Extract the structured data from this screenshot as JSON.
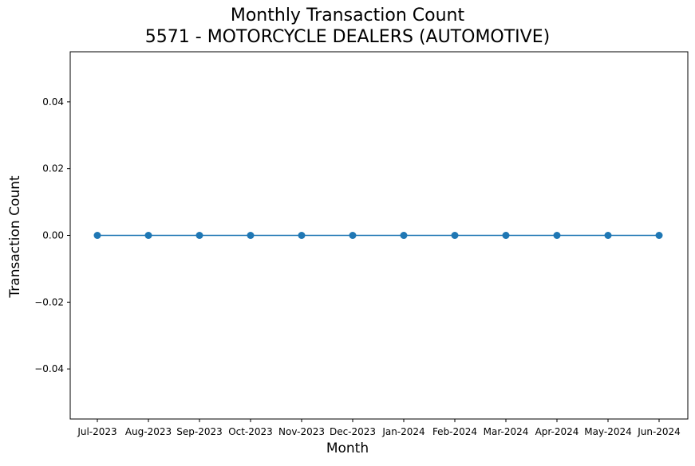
{
  "chart_data": {
    "type": "line",
    "title": "Monthly Transaction Count",
    "subtitle": "5571 - MOTORCYCLE DEALERS (AUTOMOTIVE)",
    "xlabel": "Month",
    "ylabel": "Transaction Count",
    "categories": [
      "Jul-2023",
      "Aug-2023",
      "Sep-2023",
      "Oct-2023",
      "Nov-2023",
      "Dec-2023",
      "Jan-2024",
      "Feb-2024",
      "Mar-2024",
      "Apr-2024",
      "May-2024",
      "Jun-2024"
    ],
    "series": [
      {
        "values": [
          0,
          0,
          0,
          0,
          0,
          0,
          0,
          0,
          0,
          0,
          0,
          0
        ],
        "color": "#1f77b4"
      }
    ],
    "ylim": [
      -0.055,
      0.055
    ],
    "yticks": [
      -0.04,
      -0.02,
      0.0,
      0.02,
      0.04
    ],
    "ytick_labels": [
      "−0.04",
      "−0.02",
      "0.00",
      "0.02",
      "0.04"
    ],
    "grid": false,
    "marker": "circle"
  }
}
